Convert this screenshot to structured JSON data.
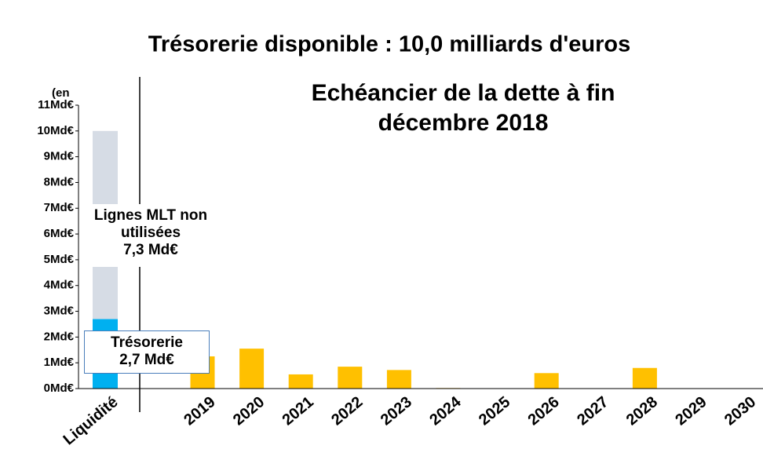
{
  "chart_data": {
    "type": "stacked-bar",
    "title": "Trésorerie disponible : 10,0 milliards d'euros",
    "subtitle": "Echéancier de la dette à fin décembre 2018",
    "y_label": "(en",
    "categories": [
      "Liquidité",
      "2019",
      "2020",
      "2021",
      "2022",
      "2023",
      "2024",
      "2025",
      "2026",
      "2027",
      "2028",
      "2029",
      "2030"
    ],
    "series": [
      {
        "name": "Trésorerie",
        "color": "#00b0f0",
        "values": [
          2.7,
          null,
          null,
          null,
          null,
          null,
          null,
          null,
          null,
          null,
          null,
          null,
          null
        ],
        "value_labels": [
          "2,7 Md€",
          null,
          null,
          null,
          null,
          null,
          null,
          null,
          null,
          null,
          null,
          null,
          null
        ]
      },
      {
        "name": "Lignes MLT non utilisées",
        "color": "#d6dce5",
        "values": [
          7.3,
          null,
          null,
          null,
          null,
          null,
          null,
          null,
          null,
          null,
          null,
          null,
          null
        ],
        "value_labels": [
          "7,3 Md€",
          null,
          null,
          null,
          null,
          null,
          null,
          null,
          null,
          null,
          null,
          null,
          null
        ]
      },
      {
        "color": "#ffc000",
        "values": [
          null,
          1.25,
          1.55,
          0.55,
          0.85,
          0.72,
          0.02,
          0,
          0.6,
          0,
          0.8,
          0,
          0
        ]
      }
    ],
    "ylim": [
      0,
      11
    ],
    "yticks": [
      {
        "value": 0,
        "label": "0Md€"
      },
      {
        "value": 1,
        "label": "1Md€"
      },
      {
        "value": 2,
        "label": "2Md€"
      },
      {
        "value": 3,
        "label": "3Md€"
      },
      {
        "value": 4,
        "label": "4Md€"
      },
      {
        "value": 5,
        "label": "5Md€"
      },
      {
        "value": 6,
        "label": "6Md€"
      },
      {
        "value": 7,
        "label": "7Md€"
      },
      {
        "value": 8,
        "label": "8Md€"
      },
      {
        "value": 9,
        "label": "9Md€"
      },
      {
        "value": 10,
        "label": "10Md€"
      },
      {
        "value": 11,
        "label": "11Md€"
      }
    ]
  }
}
